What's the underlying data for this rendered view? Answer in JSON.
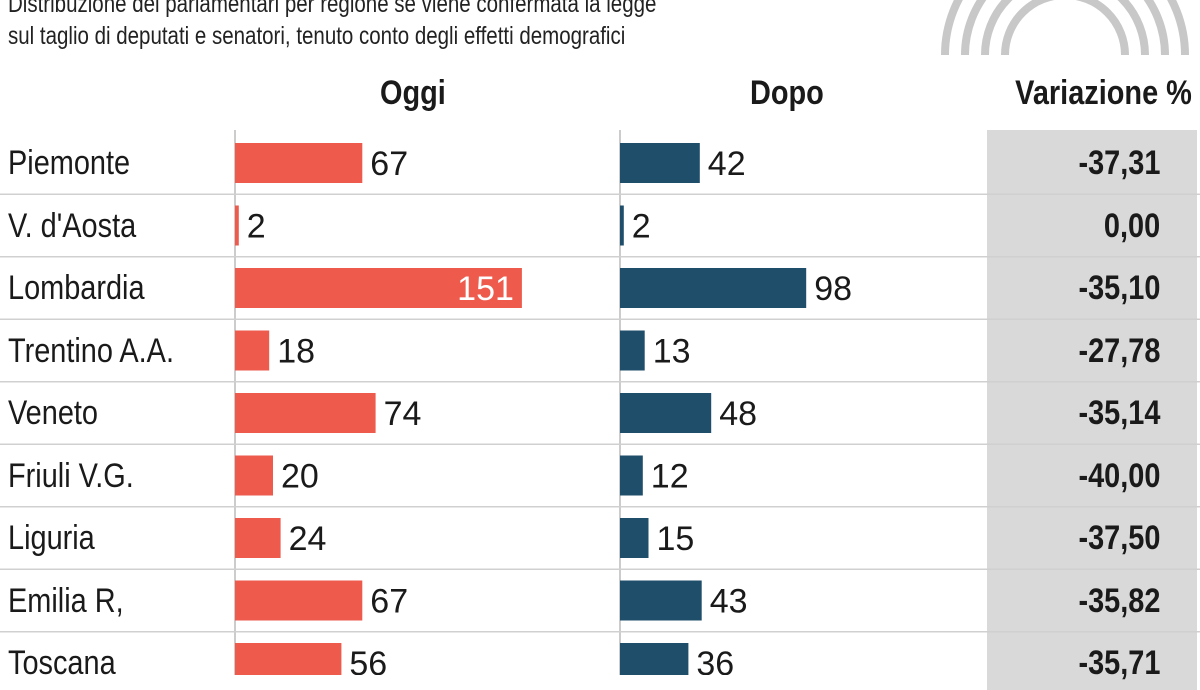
{
  "subtitle": {
    "line1": "Distribuzione dei parlamentari per regione se viene confermata la legge",
    "line2": "sul taglio di deputati e senatori, tenuto conto degli effetti demografici"
  },
  "headers": {
    "oggi": "Oggi",
    "dopo": "Dopo",
    "variazione": "Variazione %"
  },
  "colors": {
    "oggi": "#ee5a4c",
    "dopo": "#1f4e6b",
    "variation_band": "#d9d9d9"
  },
  "chart_data": {
    "type": "bar",
    "categories": [
      "Piemonte",
      "V. d'Aosta",
      "Lombardia",
      "Trentino A.A.",
      "Veneto",
      "Friuli V.G.",
      "Liguria",
      "Emilia R,",
      "Toscana"
    ],
    "series": [
      {
        "name": "Oggi",
        "values": [
          67,
          2,
          151,
          18,
          74,
          20,
          24,
          67,
          56
        ]
      },
      {
        "name": "Dopo",
        "values": [
          42,
          2,
          98,
          13,
          48,
          12,
          15,
          43,
          36
        ]
      }
    ],
    "variazione": [
      "-37,31",
      "0,00",
      "-35,10",
      "-27,78",
      "-35,14",
      "-40,00",
      "-37,50",
      "-35,82",
      "-35,71"
    ]
  }
}
